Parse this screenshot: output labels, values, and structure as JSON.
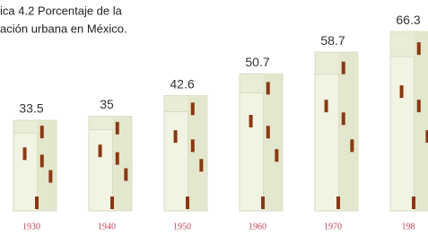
{
  "chart_data": {
    "type": "bar",
    "title": [
      "ica 4.2 Porcentaje de la",
      "ación urbana en México."
    ],
    "categories": [
      "1930",
      "1940",
      "1950",
      "1960",
      "1970",
      "198"
    ],
    "values": [
      33.5,
      35,
      42.6,
      50.7,
      58.7,
      66.3
    ],
    "color": "#e9ecd6",
    "label_color": "#c2435c",
    "window_color": "#8a3812",
    "ylim": [
      0,
      70
    ]
  }
}
